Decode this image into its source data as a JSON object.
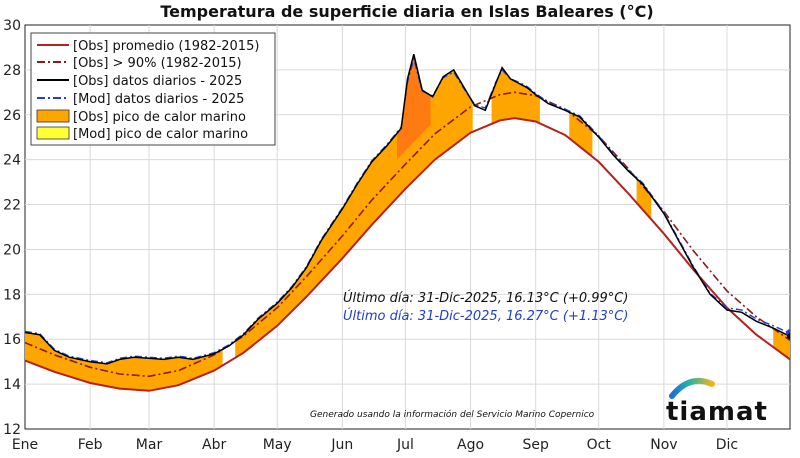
{
  "chart_data": {
    "type": "line",
    "title": "Temperatura de superficie diaria en Islas Baleares (°C)",
    "xlabel": "",
    "ylabel": "",
    "ylim": [
      12,
      30
    ],
    "yticks": [
      "12",
      "14",
      "16",
      "18",
      "20",
      "22",
      "24",
      "26",
      "28",
      "30"
    ],
    "month_labels": [
      "Ene",
      "Feb",
      "Mar",
      "Abr",
      "May",
      "Jun",
      "Jul",
      "Ago",
      "Sep",
      "Oct",
      "Nov",
      "Dic"
    ],
    "grid": true,
    "legend_position": "top-left",
    "legend": [
      {
        "label": "[Obs] promedio (1982-2015)",
        "kind": "line",
        "color": "#b22222"
      },
      {
        "label": "[Obs] > 90% (1982-2015)",
        "kind": "dashdot",
        "color": "#8b1a1a"
      },
      {
        "label": "[Obs] datos diarios - 2025",
        "kind": "line",
        "color": "#000000"
      },
      {
        "label": "[Mod] datos diarios - 2025",
        "kind": "dashdot",
        "color": "#1f3fcf"
      },
      {
        "label": "[Obs] pico de calor marino",
        "kind": "patch",
        "color": "#ffa500"
      },
      {
        "label": "[Mod] pico de calor marino",
        "kind": "patch",
        "color": "#ffff33"
      }
    ],
    "series": [
      {
        "name": "[Obs] promedio (1982-2015)",
        "color": "#b22222",
        "x": [
          1,
          15,
          32,
          46,
          60,
          74,
          91,
          105,
          121,
          135,
          152,
          166,
          182,
          196,
          213,
          227,
          234,
          244,
          258,
          274,
          288,
          305,
          319,
          335,
          349,
          365
        ],
        "y": [
          15.05,
          14.55,
          14.05,
          13.8,
          13.7,
          13.95,
          14.6,
          15.4,
          16.6,
          17.9,
          19.6,
          21.1,
          22.7,
          24.0,
          25.2,
          25.75,
          25.85,
          25.7,
          25.1,
          23.9,
          22.5,
          20.7,
          19.1,
          17.4,
          16.2,
          15.1
        ]
      },
      {
        "name": "[Obs] > 90% (1982-2015)",
        "color": "#8b1a1a",
        "x": [
          1,
          15,
          32,
          46,
          60,
          74,
          91,
          105,
          121,
          135,
          152,
          166,
          182,
          196,
          213,
          227,
          234,
          244,
          258,
          274,
          288,
          305,
          319,
          335,
          349,
          365
        ],
        "y": [
          15.85,
          15.3,
          14.75,
          14.45,
          14.35,
          14.6,
          15.3,
          16.15,
          17.4,
          18.8,
          20.6,
          22.2,
          23.8,
          25.15,
          26.35,
          26.9,
          27.0,
          26.85,
          26.25,
          25.05,
          23.6,
          21.7,
          19.95,
          18.15,
          17.0,
          15.95
        ]
      },
      {
        "name": "[Obs] datos diarios - 2025",
        "color": "#000000",
        "x": [
          1,
          8,
          15,
          22,
          32,
          40,
          46,
          53,
          60,
          67,
          74,
          81,
          91,
          98,
          105,
          112,
          121,
          128,
          135,
          142,
          152,
          159,
          166,
          173,
          180,
          183,
          186,
          190,
          195,
          200,
          205,
          210,
          215,
          220,
          225,
          228,
          232,
          236,
          240,
          244,
          250,
          258,
          265,
          274,
          281,
          288,
          295,
          305,
          312,
          319,
          327,
          335,
          342,
          349,
          357,
          365
        ],
        "y": [
          16.3,
          16.2,
          15.5,
          15.2,
          15.0,
          14.9,
          15.1,
          15.2,
          15.15,
          15.1,
          15.2,
          15.1,
          15.35,
          15.7,
          16.2,
          16.9,
          17.6,
          18.3,
          19.2,
          20.4,
          21.8,
          22.9,
          23.9,
          24.6,
          25.4,
          27.6,
          28.7,
          27.1,
          26.8,
          27.7,
          28.0,
          27.2,
          26.4,
          26.2,
          27.4,
          28.1,
          27.6,
          27.4,
          27.2,
          26.9,
          26.5,
          26.2,
          25.9,
          25.0,
          24.2,
          23.5,
          22.9,
          21.6,
          20.4,
          19.2,
          18.0,
          17.3,
          17.2,
          16.8,
          16.5,
          16.13
        ]
      },
      {
        "name": "[Mod] datos diarios - 2025",
        "color": "#1f3fcf",
        "x": [
          1,
          8,
          15,
          22,
          32,
          40,
          46,
          53,
          60,
          67,
          74,
          81,
          91,
          98,
          105,
          112,
          121,
          128,
          135,
          142,
          152,
          159,
          166,
          173,
          180,
          183,
          186,
          190,
          195,
          200,
          205,
          210,
          215,
          220,
          225,
          228,
          232,
          236,
          240,
          244,
          250,
          258,
          265,
          274,
          281,
          288,
          295,
          305,
          312,
          319,
          327,
          335,
          342,
          349,
          357,
          365
        ],
        "y": [
          16.35,
          16.25,
          15.55,
          15.25,
          15.05,
          14.95,
          15.15,
          15.25,
          15.2,
          15.15,
          15.25,
          15.15,
          15.4,
          15.75,
          16.25,
          16.95,
          17.65,
          18.35,
          19.25,
          20.45,
          21.85,
          22.95,
          23.95,
          24.65,
          25.45,
          27.45,
          28.5,
          27.05,
          26.85,
          27.65,
          27.9,
          27.15,
          26.45,
          26.3,
          27.45,
          28.0,
          27.6,
          27.45,
          27.25,
          26.95,
          26.55,
          26.25,
          25.95,
          25.05,
          24.25,
          23.55,
          22.95,
          21.65,
          20.45,
          19.25,
          18.05,
          17.4,
          17.3,
          16.9,
          16.6,
          16.27
        ]
      }
    ],
    "annotations": [
      {
        "text": "Último día: 31-Dic-2025, 16.13°C (+0.99°C)",
        "color": "#111111"
      },
      {
        "text": "Último día: 31-Dic-2025, 16.27°C (+1.13°C)",
        "color": "#1f3fcf"
      }
    ],
    "credit": "Generado usando la información del Servicio Marino Copernico",
    "logo": "tiamat"
  }
}
